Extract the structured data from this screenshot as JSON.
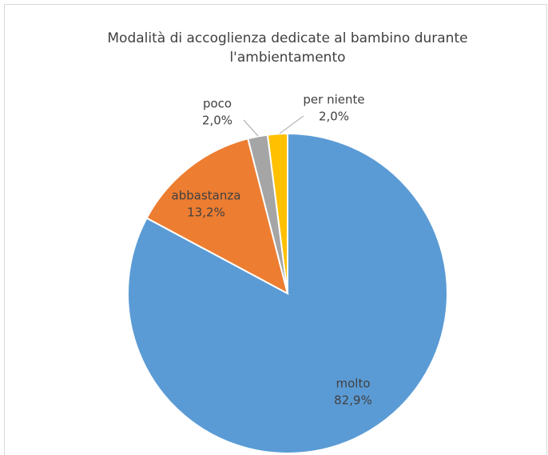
{
  "chart_data": {
    "type": "pie",
    "title": "Modalità di accoglienza dedicate al bambino durante l'ambientamento",
    "categories": [
      "molto",
      "abbastanza",
      "poco",
      "per niente"
    ],
    "values": [
      82.9,
      13.2,
      2.0,
      2.0
    ],
    "value_labels": [
      "82,9%",
      "13,2%",
      "2,0%",
      "2,0%"
    ],
    "colors": [
      "#5b9bd5",
      "#ed7d31",
      "#a5a5a5",
      "#ffc000"
    ]
  }
}
